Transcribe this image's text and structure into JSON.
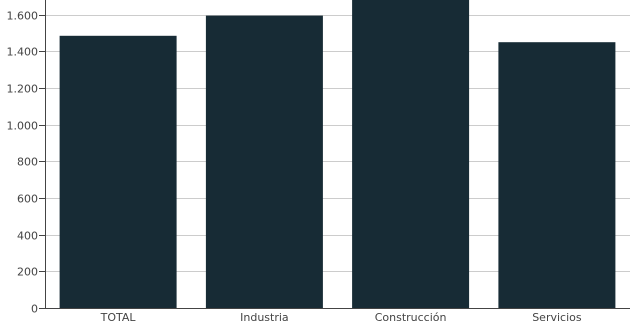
{
  "chart_data": {
    "type": "bar",
    "title": "",
    "xlabel": "",
    "ylabel": "",
    "categories": [
      "TOTAL",
      "Industria",
      "Construcción",
      "Servicios"
    ],
    "values": [
      1485,
      1595,
      1680,
      1450
    ],
    "ylim": [
      0,
      1680
    ],
    "yticks": [
      0,
      200,
      400,
      600,
      800,
      1000,
      1200,
      1400,
      1600
    ],
    "ytick_labels": [
      "0",
      "200",
      "400",
      "600",
      "800",
      "1.000",
      "1.200",
      "1.400",
      "1.600"
    ],
    "grid": true,
    "legend": "none",
    "bar_color": "#172b35",
    "grid_color": "#cccccc",
    "axis_color": "#444444"
  }
}
